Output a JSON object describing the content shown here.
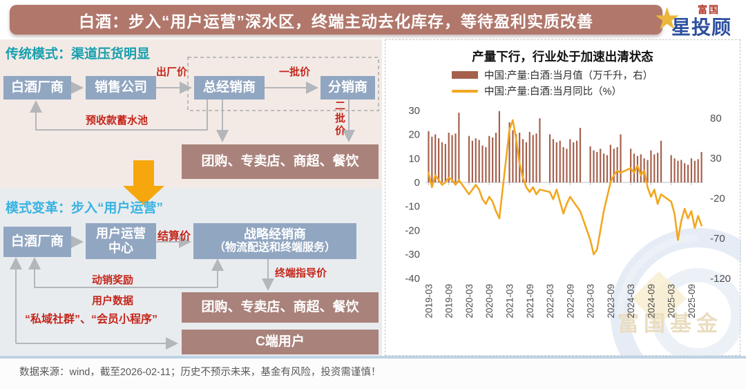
{
  "title_bar": {
    "text": "白酒：步入“用户运营”深水区，终端主动去化库存，等待盈利实质改善"
  },
  "logo": {
    "star_icon": "★",
    "brand": "富国",
    "product": "星投顾"
  },
  "diagram_traditional": {
    "heading": "传统模式：渠道压货明显",
    "manufacturer": "白酒厂商",
    "sales_company": "销售公司",
    "general_distributor": "总经销商",
    "sub_distributor": "分销商",
    "terminal_channels": "团购、专卖店、商超、餐饮",
    "label_ex_factory_price": "出厂价",
    "label_first_batch_price": "一批价",
    "label_second_batch_price": "二批价",
    "label_prepayment_pool": "预收款蓄水池"
  },
  "diagram_new": {
    "heading": "模式变革：步入“用户运营”",
    "manufacturer": "白酒厂商",
    "user_ops_line1": "用户运营",
    "user_ops_line2": "中心",
    "strategic_line1": "战略经销商",
    "strategic_line2": "（物流配送和终端服务）",
    "terminal_channels": "团购、专卖店、商超、餐饮",
    "c_end_users": "C端用户",
    "label_settlement_price": "结算价",
    "label_sales_incentive": "动销奖励",
    "label_user_data": "用户数据",
    "label_terminal_guide_price": "终端指导价",
    "label_private_domain": "“私域社群”、“会员小程序”"
  },
  "chart": {
    "title": "产量下行，行业处于加速出清状态",
    "legend": [
      {
        "label": "中国:产量:白酒:当月值（万千升，右）",
        "color": "#A5604C",
        "type": "bar"
      },
      {
        "label": "中国:产量:白酒:当月同比（%）",
        "color": "#F2A71F",
        "type": "line"
      }
    ]
  },
  "watermark": {
    "text": "富国基金"
  },
  "footer": {
    "disclaimer": "数据来源：wind，截至2026-02-11；历史不预示未来，基金有风险，投资需谨慎！"
  },
  "chart_data": {
    "type": "bar",
    "title": "产量下行，行业处于加速出清状态",
    "x": [
      "2019-03",
      "2019-04",
      "2019-05",
      "2019-06",
      "2019-07",
      "2019-08",
      "2019-09",
      "2019-10",
      "2019-11",
      "2019-12",
      "2020-01",
      "2020-02",
      "2020-03",
      "2020-04",
      "2020-05",
      "2020-06",
      "2020-07",
      "2020-08",
      "2020-09",
      "2020-10",
      "2020-11",
      "2020-12",
      "2021-01",
      "2021-02",
      "2021-03",
      "2021-04",
      "2021-05",
      "2021-06",
      "2021-07",
      "2021-08",
      "2021-09",
      "2021-10",
      "2021-11",
      "2021-12",
      "2022-01",
      "2022-02",
      "2022-03",
      "2022-04",
      "2022-05",
      "2022-06",
      "2022-07",
      "2022-08",
      "2022-09",
      "2022-10",
      "2022-11",
      "2022-12",
      "2023-01",
      "2023-02",
      "2023-03",
      "2023-04",
      "2023-05",
      "2023-06",
      "2023-07",
      "2023-08",
      "2023-09",
      "2023-10",
      "2023-11",
      "2023-12",
      "2024-01",
      "2024-02",
      "2024-03",
      "2024-04",
      "2024-05",
      "2024-06",
      "2024-07",
      "2024-08",
      "2024-09",
      "2024-10",
      "2024-11",
      "2024-12",
      "2025-01",
      "2025-02",
      "2025-03",
      "2025-04",
      "2025-05",
      "2025-06",
      "2025-07",
      "2025-08",
      "2025-09",
      "2025-10",
      "2025-11",
      "2025-12"
    ],
    "series": [
      {
        "name": "中国:产量:白酒:当月值（万千升，右）",
        "type": "bar",
        "axis": "right",
        "color": "#A5604C",
        "values": [
          64,
          57,
          60,
          55,
          50,
          48,
          62,
          59,
          61,
          87,
          null,
          null,
          58,
          52,
          55,
          53,
          46,
          44,
          58,
          56,
          62,
          89,
          null,
          null,
          75,
          65,
          60,
          62,
          54,
          50,
          63,
          59,
          61,
          80,
          null,
          null,
          60,
          54,
          50,
          52,
          44,
          42,
          54,
          50,
          52,
          68,
          null,
          null,
          45,
          40,
          38,
          42,
          36,
          34,
          47,
          42,
          44,
          60,
          null,
          null,
          42,
          36,
          33,
          35,
          30,
          28,
          40,
          35,
          37,
          52,
          null,
          null,
          34,
          30,
          27,
          28,
          24,
          22,
          30,
          27,
          29,
          38
        ]
      },
      {
        "name": "中国:产量:白酒:当月同比（%）",
        "type": "line",
        "axis": "left",
        "color": "#F2A71F",
        "values": [
          4,
          -2,
          3,
          1,
          -1,
          0,
          2,
          1,
          -1,
          1,
          null,
          null,
          -5,
          -3,
          -1,
          -3,
          -7,
          -9,
          -6,
          -8,
          -12,
          -15,
          null,
          null,
          22,
          26,
          18,
          8,
          2,
          -2,
          -4,
          -2,
          -5,
          -3,
          null,
          null,
          -4,
          -7,
          -3,
          -8,
          -13,
          -9,
          -6,
          -8,
          -10,
          -12,
          null,
          null,
          -24,
          -30,
          -28,
          -20,
          -12,
          -6,
          0,
          3,
          5,
          4,
          null,
          null,
          6,
          4,
          7,
          3,
          5,
          -2,
          -6,
          -3,
          -9,
          -5,
          null,
          null,
          -8,
          -13,
          -24,
          -16,
          -11,
          -15,
          -12,
          -19,
          -14,
          -18
        ]
      }
    ],
    "left_axis": {
      "min": -40,
      "max": 30,
      "ticks": [
        30,
        20,
        10,
        0,
        -10,
        -20,
        -30,
        -40
      ],
      "label": "当月同比（%）"
    },
    "right_axis": {
      "min": -120,
      "max": 80,
      "ticks": [
        80,
        30,
        -20,
        -70,
        -120
      ],
      "label": "当月值（万千升）"
    },
    "x_tick_labels": [
      "2019-03",
      "2019-09",
      "2020-03",
      "2020-09",
      "2021-03",
      "2021-09",
      "2022-03",
      "2022-09",
      "2023-03",
      "2023-09",
      "2024-03",
      "2024-09",
      "2025-03",
      "2025-09"
    ],
    "x_tick_interval": 6,
    "grid": false,
    "legend_position": "top"
  }
}
